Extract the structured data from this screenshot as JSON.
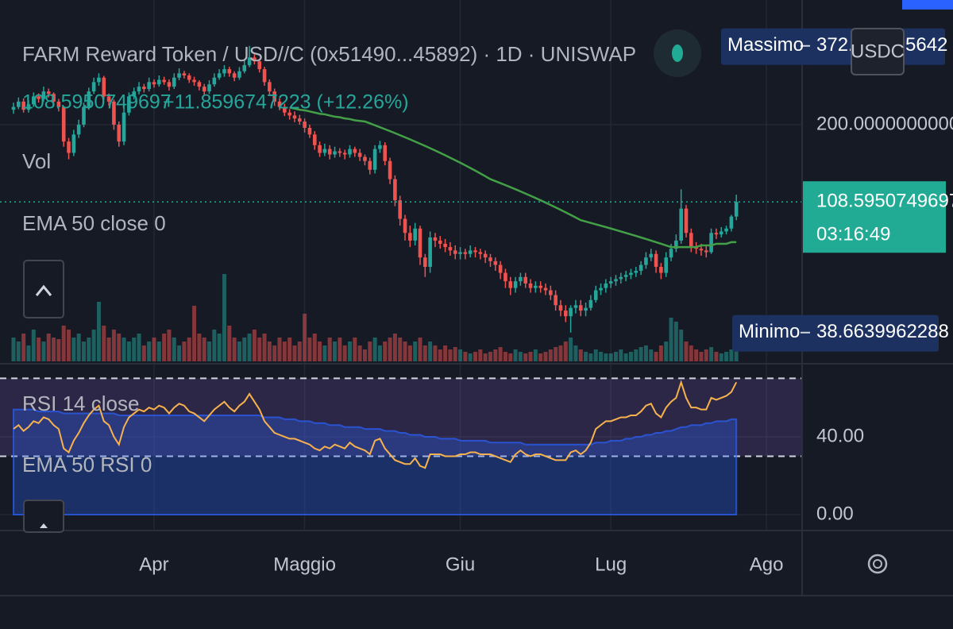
{
  "header": {
    "title": "FARM Reward Token / USD//C (0x51490...45892) · 1D · UNISWAP",
    "button": "USDC"
  },
  "chart_data": {
    "type": "candlestick",
    "legend": {
      "change": "+11.8596747223 (+12.26%)"
    },
    "labels": {
      "volume": "Vol",
      "ema": "EMA 50 close 0",
      "rsi": "RSI 14 close",
      "rsi_ema": "EMA 50 RSI 0"
    },
    "log_scale": true,
    "ylim": [
      30.8,
      535.6
    ],
    "yticks": [
      {
        "value": 200,
        "label": "200.0000000000"
      }
    ],
    "xlim": [
      -2.69,
      157.1
    ],
    "xticks": [
      {
        "value": 28,
        "label": "Apr"
      },
      {
        "value": 58,
        "label": "Maggio"
      },
      {
        "value": 89,
        "label": "Giu"
      },
      {
        "value": 119,
        "label": "Lug"
      },
      {
        "value": 150,
        "label": "Ago"
      }
    ],
    "grid": true,
    "colors": {
      "up": "#26a69a",
      "down": "#ef5350",
      "ema": "#43a047",
      "rsi": "#f7b24d",
      "rsi_ema": "#2962ff",
      "rsi_band": "#7e57c2",
      "last": "#22ab94",
      "marker": "#1c3160"
    },
    "ohlc": [
      [
        225,
        238,
        218,
        230
      ],
      [
        230,
        248,
        226,
        240
      ],
      [
        240,
        246,
        220,
        225
      ],
      [
        225,
        242,
        220,
        235
      ],
      [
        235,
        258,
        230,
        250
      ],
      [
        250,
        256,
        238,
        245
      ],
      [
        245,
        270,
        240,
        260
      ],
      [
        260,
        266,
        248,
        255
      ],
      [
        255,
        258,
        232,
        240
      ],
      [
        240,
        245,
        222,
        230
      ],
      [
        230,
        232,
        168,
        175
      ],
      [
        175,
        180,
        152,
        160
      ],
      [
        160,
        192,
        156,
        185
      ],
      [
        185,
        208,
        180,
        200
      ],
      [
        200,
        238,
        196,
        230
      ],
      [
        230,
        268,
        225,
        260
      ],
      [
        260,
        290,
        255,
        280
      ],
      [
        280,
        300,
        272,
        290
      ],
      [
        290,
        294,
        244,
        250
      ],
      [
        250,
        256,
        232,
        240
      ],
      [
        240,
        244,
        192,
        200
      ],
      [
        200,
        205,
        168,
        175
      ],
      [
        175,
        228,
        170,
        220
      ],
      [
        220,
        258,
        215,
        250
      ],
      [
        250,
        268,
        244,
        260
      ],
      [
        260,
        280,
        254,
        270
      ],
      [
        270,
        276,
        258,
        265
      ],
      [
        265,
        290,
        260,
        280
      ],
      [
        280,
        286,
        268,
        275
      ],
      [
        275,
        295,
        270,
        285
      ],
      [
        285,
        292,
        274,
        280
      ],
      [
        280,
        286,
        262,
        270
      ],
      [
        270,
        300,
        265,
        290
      ],
      [
        290,
        312,
        284,
        300
      ],
      [
        300,
        306,
        288,
        295
      ],
      [
        295,
        300,
        278,
        285
      ],
      [
        285,
        292,
        272,
        280
      ],
      [
        280,
        284,
        262,
        270
      ],
      [
        270,
        276,
        252,
        260
      ],
      [
        260,
        284,
        255,
        275
      ],
      [
        275,
        300,
        270,
        290
      ],
      [
        290,
        310,
        285,
        300
      ],
      [
        300,
        320,
        292,
        310
      ],
      [
        310,
        316,
        292,
        300
      ],
      [
        300,
        305,
        282,
        290
      ],
      [
        290,
        315,
        285,
        305
      ],
      [
        305,
        332,
        300,
        320
      ],
      [
        320,
        372.7,
        315,
        340
      ],
      [
        340,
        348,
        322,
        330
      ],
      [
        330,
        336,
        302,
        310
      ],
      [
        310,
        316,
        272,
        280
      ],
      [
        280,
        286,
        252,
        260
      ],
      [
        260,
        266,
        232,
        240
      ],
      [
        240,
        246,
        224,
        230
      ],
      [
        230,
        236,
        214,
        220
      ],
      [
        220,
        226,
        208,
        215
      ],
      [
        215,
        222,
        204,
        210
      ],
      [
        210,
        216,
        200,
        205
      ],
      [
        205,
        210,
        188,
        195
      ],
      [
        195,
        200,
        180,
        185
      ],
      [
        185,
        190,
        164,
        170
      ],
      [
        170,
        175,
        155,
        160
      ],
      [
        160,
        172,
        156,
        165
      ],
      [
        165,
        170,
        152,
        158
      ],
      [
        158,
        168,
        154,
        162
      ],
      [
        162,
        166,
        155,
        160
      ],
      [
        160,
        164,
        152,
        158
      ],
      [
        158,
        170,
        154,
        165
      ],
      [
        165,
        168,
        155,
        160
      ],
      [
        160,
        165,
        150,
        155
      ],
      [
        155,
        158,
        145,
        150
      ],
      [
        150,
        154,
        135,
        140
      ],
      [
        140,
        170,
        136,
        165
      ],
      [
        165,
        176,
        160,
        170
      ],
      [
        170,
        174,
        145,
        150
      ],
      [
        150,
        154,
        125,
        130
      ],
      [
        130,
        134,
        105,
        110
      ],
      [
        110,
        114,
        90,
        95
      ],
      [
        95,
        98,
        80,
        85
      ],
      [
        85,
        90,
        76,
        80
      ],
      [
        80,
        92,
        77,
        88
      ],
      [
        88,
        90,
        66,
        70
      ],
      [
        70,
        72,
        60,
        65
      ],
      [
        65,
        86,
        62,
        82
      ],
      [
        82,
        85,
        76,
        80
      ],
      [
        80,
        83,
        75,
        78
      ],
      [
        78,
        81,
        73,
        76
      ],
      [
        76,
        79,
        71,
        74
      ],
      [
        74,
        77,
        69,
        72
      ],
      [
        72,
        76,
        69,
        73
      ],
      [
        73,
        75,
        69,
        72
      ],
      [
        72,
        77,
        70,
        74
      ],
      [
        74,
        76,
        70,
        73
      ],
      [
        73,
        75,
        69,
        72
      ],
      [
        72,
        74,
        67,
        70
      ],
      [
        70,
        72,
        65,
        68
      ],
      [
        68,
        70,
        63,
        66
      ],
      [
        66,
        68,
        59,
        62
      ],
      [
        62,
        64,
        55,
        58
      ],
      [
        58,
        60,
        52,
        55
      ],
      [
        55,
        60,
        53,
        58
      ],
      [
        58,
        62,
        56,
        60
      ],
      [
        60,
        62,
        55,
        57
      ],
      [
        57,
        59,
        53,
        55
      ],
      [
        55,
        58,
        53,
        56
      ],
      [
        56,
        58,
        53,
        55
      ],
      [
        55,
        57,
        52,
        54
      ],
      [
        54,
        56,
        50,
        52
      ],
      [
        52,
        54,
        46,
        48
      ],
      [
        48,
        50,
        44,
        46
      ],
      [
        46,
        48,
        42,
        44
      ],
      [
        44,
        48,
        38.6639962288,
        47
      ],
      [
        47,
        50,
        45,
        48
      ],
      [
        48,
        50,
        44,
        46
      ],
      [
        46,
        49,
        44,
        47
      ],
      [
        47,
        52,
        46,
        50
      ],
      [
        50,
        56,
        49,
        54
      ],
      [
        54,
        57,
        52,
        55
      ],
      [
        55,
        59,
        53,
        57
      ],
      [
        57,
        60,
        55,
        58
      ],
      [
        58,
        61,
        56,
        59
      ],
      [
        59,
        62,
        57,
        60
      ],
      [
        60,
        63,
        58,
        61
      ],
      [
        61,
        64,
        59,
        62
      ],
      [
        62,
        65,
        60,
        63
      ],
      [
        63,
        68,
        61,
        66
      ],
      [
        66,
        73,
        64,
        70
      ],
      [
        70,
        75,
        68,
        72
      ],
      [
        72,
        74,
        62,
        65
      ],
      [
        65,
        67,
        59,
        62
      ],
      [
        62,
        73,
        60,
        70
      ],
      [
        70,
        78,
        68,
        75
      ],
      [
        75,
        84,
        73,
        80
      ],
      [
        80,
        120,
        78,
        103
      ],
      [
        103,
        106,
        82,
        85
      ],
      [
        85,
        88,
        73,
        76
      ],
      [
        76,
        79,
        72,
        75
      ],
      [
        75,
        78,
        71,
        74
      ],
      [
        74,
        77,
        70,
        73
      ],
      [
        73,
        88,
        72,
        85
      ],
      [
        85,
        88,
        81,
        84
      ],
      [
        84,
        89,
        82,
        86
      ],
      [
        86,
        90,
        84,
        88
      ],
      [
        88,
        98,
        86,
        96.7354
      ],
      [
        96.7354,
        115,
        94,
        108.5950749697
      ]
    ],
    "ema": [
      null,
      null,
      null,
      null,
      null,
      null,
      null,
      null,
      null,
      null,
      null,
      null,
      null,
      null,
      null,
      null,
      null,
      null,
      null,
      null,
      null,
      null,
      null,
      null,
      null,
      null,
      null,
      null,
      null,
      null,
      null,
      null,
      null,
      null,
      null,
      null,
      null,
      null,
      null,
      null,
      null,
      null,
      null,
      null,
      null,
      null,
      null,
      null,
      null,
      null,
      null,
      null,
      null,
      null,
      null,
      229,
      227,
      225,
      224,
      222,
      220,
      218,
      217,
      215,
      213,
      212,
      210,
      209,
      207,
      206,
      205,
      202,
      199,
      196,
      193,
      190,
      187,
      184,
      181,
      178,
      175,
      172,
      169,
      166,
      163,
      160,
      157,
      154,
      151,
      148,
      145,
      142,
      139,
      136,
      133,
      130,
      128,
      126,
      124,
      122,
      120,
      118,
      116,
      114,
      112,
      110,
      108,
      106,
      104,
      102,
      100,
      98,
      96,
      94,
      93,
      92,
      91,
      90,
      89,
      88,
      87,
      86,
      85,
      84,
      83,
      82,
      81,
      80,
      79,
      78,
      77,
      76,
      76,
      76,
      76,
      76,
      76,
      77,
      77,
      77,
      78,
      78,
      78,
      79,
      79
    ],
    "vlim": [
      0,
      120
    ],
    "volume": [
      30,
      25,
      35,
      20,
      40,
      30,
      25,
      35,
      30,
      28,
      45,
      40,
      30,
      35,
      25,
      30,
      40,
      75,
      45,
      30,
      40,
      35,
      30,
      25,
      30,
      35,
      20,
      25,
      30,
      25,
      35,
      40,
      30,
      20,
      25,
      30,
      70,
      35,
      30,
      25,
      40,
      35,
      110,
      45,
      30,
      25,
      30,
      35,
      40,
      30,
      35,
      25,
      20,
      30,
      25,
      30,
      20,
      25,
      60,
      30,
      35,
      25,
      20,
      30,
      25,
      30,
      20,
      25,
      30,
      20,
      15,
      25,
      30,
      20,
      25,
      30,
      35,
      30,
      25,
      20,
      25,
      30,
      20,
      25,
      20,
      15,
      20,
      15,
      18,
      15,
      12,
      10,
      12,
      15,
      10,
      12,
      15,
      18,
      12,
      10,
      15,
      12,
      10,
      12,
      15,
      10,
      12,
      15,
      18,
      20,
      25,
      30,
      20,
      15,
      12,
      10,
      15,
      12,
      10,
      10,
      12,
      15,
      10,
      12,
      15,
      18,
      20,
      15,
      12,
      20,
      25,
      55,
      50,
      40,
      25,
      20,
      15,
      12,
      15,
      18,
      12,
      10,
      12,
      15,
      20
    ],
    "rsi_lim": [
      -4.9,
      76.7
    ],
    "rsi_ticks": [
      {
        "value": 40,
        "label": "40.00"
      },
      {
        "value": 0,
        "label": "0.00"
      }
    ],
    "rsi_levels": [
      70,
      30
    ],
    "rsi": [
      44,
      46,
      43,
      45,
      48,
      47,
      50,
      49,
      46,
      44,
      34,
      32,
      38,
      42,
      47,
      51,
      54,
      56,
      48,
      46,
      40,
      36,
      45,
      50,
      52,
      54,
      53,
      55,
      54,
      56,
      55,
      52,
      55,
      57,
      56,
      53,
      52,
      50,
      48,
      51,
      54,
      56,
      58,
      55,
      53,
      56,
      58,
      62,
      58,
      54,
      48,
      45,
      42,
      41,
      40,
      39,
      39,
      38,
      37,
      36,
      34,
      33,
      35,
      34,
      36,
      35,
      34,
      37,
      35,
      34,
      33,
      31,
      38,
      39,
      34,
      31,
      28,
      27,
      26,
      26,
      29,
      25,
      24,
      31,
      31,
      31,
      30,
      30,
      30,
      31,
      31,
      32,
      32,
      31,
      31,
      31,
      30,
      29,
      28,
      27,
      31,
      33,
      31,
      30,
      31,
      31,
      30,
      29,
      28,
      28,
      28,
      32,
      33,
      31,
      33,
      37,
      44,
      46,
      48,
      48,
      49,
      50,
      50,
      51,
      51,
      53,
      56,
      57,
      52,
      50,
      55,
      58,
      60,
      68,
      60,
      55,
      55,
      54,
      54,
      60,
      59,
      60,
      61,
      63,
      68
    ],
    "rsi_ema": [
      54,
      54,
      54,
      54,
      54,
      53,
      53,
      53,
      53,
      53,
      52,
      52,
      52,
      52,
      52,
      52,
      52,
      52,
      52,
      52,
      52,
      51,
      51,
      51,
      51,
      51,
      51,
      51,
      51,
      51,
      51,
      51,
      51,
      51,
      51,
      51,
      51,
      51,
      51,
      51,
      51,
      51,
      51,
      51,
      51,
      51,
      51,
      51,
      51,
      51,
      50,
      50,
      50,
      50,
      49,
      49,
      49,
      48,
      48,
      48,
      47,
      47,
      47,
      46,
      46,
      46,
      45,
      45,
      45,
      45,
      44,
      44,
      44,
      44,
      43,
      43,
      43,
      42,
      42,
      41,
      41,
      41,
      40,
      40,
      40,
      39,
      39,
      39,
      39,
      38,
      38,
      38,
      38,
      38,
      38,
      37,
      37,
      37,
      37,
      37,
      37,
      37,
      36,
      36,
      36,
      36,
      36,
      36,
      36,
      36,
      36,
      36,
      36,
      36,
      36,
      36,
      37,
      37,
      37,
      38,
      38,
      38,
      39,
      39,
      40,
      40,
      41,
      41,
      42,
      42,
      43,
      43,
      44,
      45,
      45,
      46,
      46,
      46,
      47,
      47,
      48,
      48,
      48,
      49,
      49
    ],
    "high_marker": {
      "name": "Massimo",
      "value": 372.7,
      "tail": "5642"
    },
    "low_marker": {
      "name": "Minimo",
      "value": 38.6639962288
    },
    "last_price": {
      "value": 108.5950749697,
      "countdown": "03:16:49"
    }
  }
}
